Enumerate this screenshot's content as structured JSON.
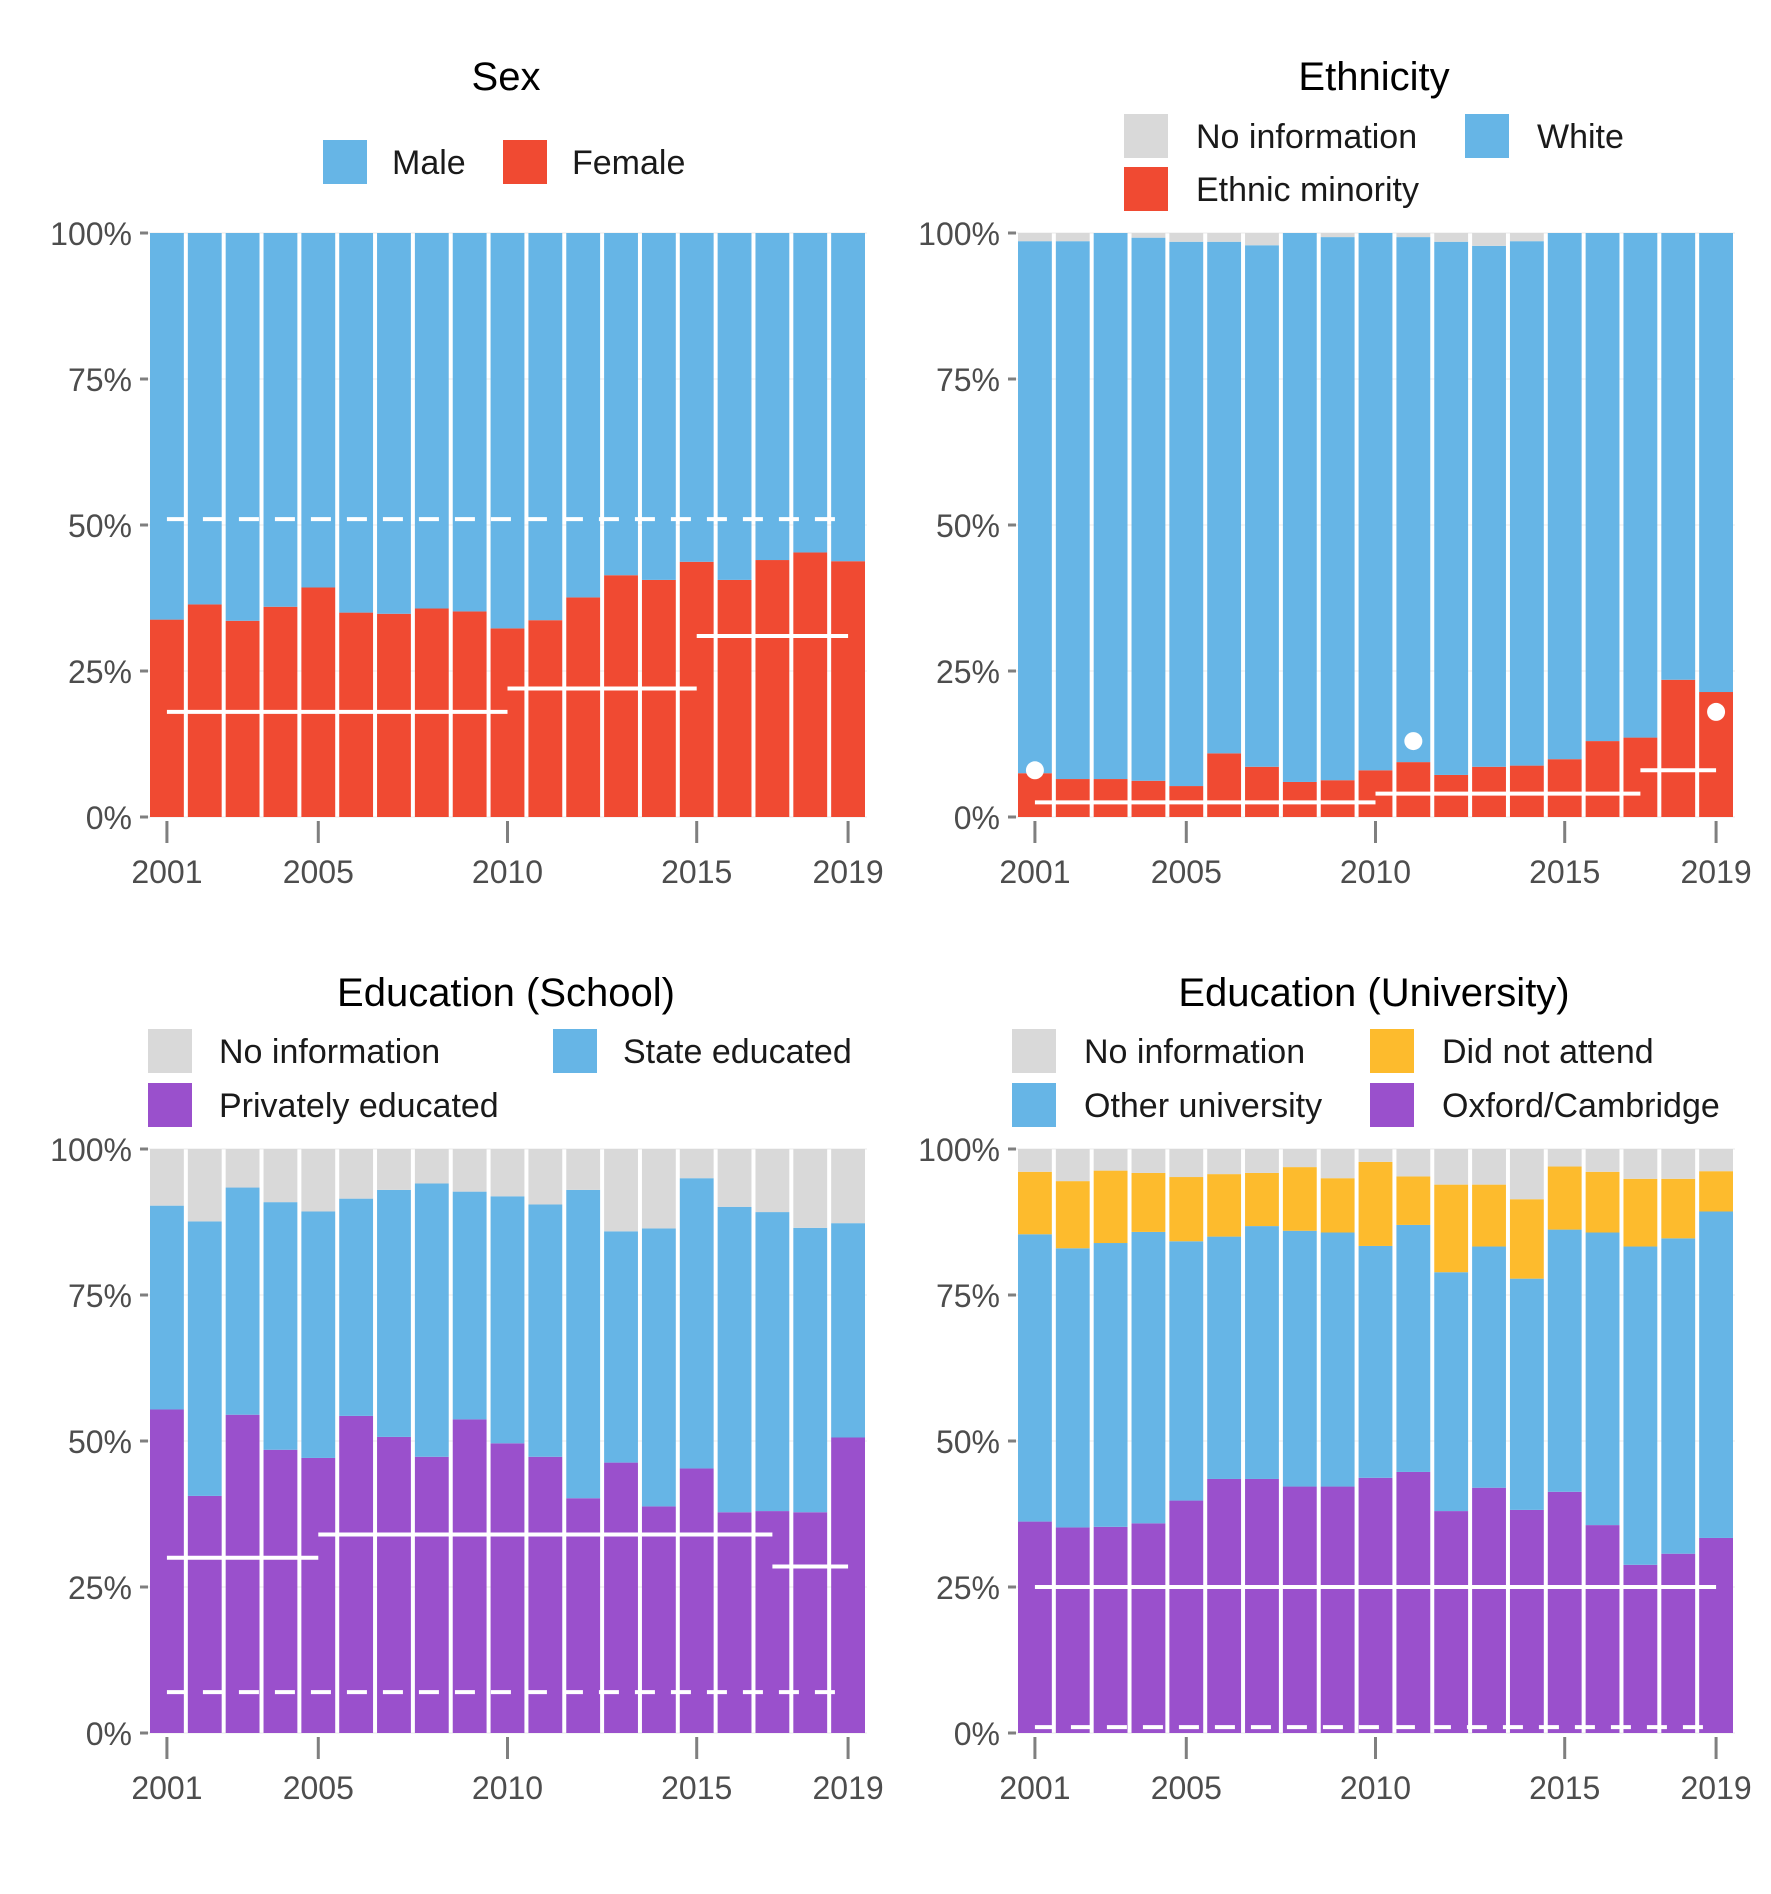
{
  "colors": {
    "male": "#66b5e6",
    "female": "#f04a32",
    "no_information": "#d9d9d9",
    "white_ethnicity": "#66b5e6",
    "ethnic_minority": "#f04a32",
    "state_educated": "#66b5e6",
    "privately_educated": "#9a50cc",
    "did_not_attend": "#fdbb2d",
    "other_university": "#66b5e6",
    "oxbridge": "#9a50cc",
    "reference": "#ffffff",
    "axis_text": "#4d4d4d"
  },
  "chart_data": [
    {
      "id": "sex",
      "type": "bar",
      "stacked": true,
      "title": "Sex",
      "xlabel": "",
      "ylabel": "",
      "ylim": [
        0,
        100
      ],
      "yticks": [
        "0%",
        "25%",
        "50%",
        "75%",
        "100%"
      ],
      "xticks": [
        "2001",
        "2005",
        "2010",
        "2015",
        "2019"
      ],
      "legend_position": "top",
      "legend": [
        {
          "label": "Male",
          "color": "#66b5e6"
        },
        {
          "label": "Female",
          "color": "#f04a32"
        }
      ],
      "categories": [
        2001,
        2002,
        2003,
        2004,
        2005,
        2006,
        2007,
        2008,
        2009,
        2010,
        2011,
        2012,
        2013,
        2014,
        2015,
        2016,
        2017,
        2018,
        2019
      ],
      "series": [
        {
          "name": "Female",
          "color": "#f04a32",
          "values": [
            33.8,
            36.4,
            33.6,
            36.0,
            39.3,
            35.0,
            34.8,
            35.7,
            35.2,
            32.3,
            33.7,
            37.6,
            41.4,
            40.6,
            43.7,
            40.6,
            44.0,
            45.3,
            43.8
          ]
        },
        {
          "name": "Male",
          "color": "#66b5e6",
          "values": [
            66.2,
            63.6,
            66.4,
            64.0,
            60.7,
            65.0,
            65.2,
            64.3,
            64.8,
            67.7,
            66.3,
            62.4,
            58.6,
            59.4,
            56.3,
            59.4,
            56.0,
            54.7,
            56.2
          ]
        }
      ],
      "reference_lines": [
        {
          "style": "dashed",
          "from": 2001,
          "to": 2019,
          "value": 51
        },
        {
          "style": "solid",
          "from": 2001,
          "to": 2010,
          "value": 18
        },
        {
          "style": "solid",
          "from": 2010,
          "to": 2015,
          "value": 22
        },
        {
          "style": "solid",
          "from": 2015,
          "to": 2019,
          "value": 31
        }
      ],
      "reference_points": []
    },
    {
      "id": "ethnicity",
      "type": "bar",
      "stacked": true,
      "title": "Ethnicity",
      "xlabel": "",
      "ylabel": "",
      "ylim": [
        0,
        100
      ],
      "yticks": [
        "0%",
        "25%",
        "50%",
        "75%",
        "100%"
      ],
      "xticks": [
        "2001",
        "2005",
        "2010",
        "2015",
        "2019"
      ],
      "legend_position": "top",
      "legend": [
        {
          "label": "No information",
          "color": "#d9d9d9"
        },
        {
          "label": "White",
          "color": "#66b5e6"
        },
        {
          "label": "Ethnic minority",
          "color": "#f04a32"
        }
      ],
      "categories": [
        2001,
        2002,
        2003,
        2004,
        2005,
        2006,
        2007,
        2008,
        2009,
        2010,
        2011,
        2012,
        2013,
        2014,
        2015,
        2016,
        2017,
        2018,
        2019
      ],
      "series": [
        {
          "name": "Ethnic minority",
          "color": "#f04a32",
          "values": [
            7.5,
            6.5,
            6.5,
            6.2,
            5.3,
            10.9,
            8.6,
            6.0,
            6.3,
            8.0,
            9.4,
            7.2,
            8.6,
            8.8,
            9.9,
            13.0,
            13.6,
            23.5,
            21.4
          ]
        },
        {
          "name": "White",
          "color": "#66b5e6",
          "values": [
            91.1,
            92.1,
            93.5,
            93.0,
            93.2,
            87.6,
            89.3,
            94.0,
            93.0,
            92.0,
            89.9,
            91.3,
            89.2,
            89.8,
            90.1,
            87.0,
            86.4,
            76.5,
            78.6
          ]
        },
        {
          "name": "No information",
          "color": "#d9d9d9",
          "values": [
            1.4,
            1.4,
            0.0,
            0.8,
            1.5,
            1.5,
            2.1,
            0.0,
            0.7,
            0.0,
            0.7,
            1.5,
            2.2,
            1.4,
            0.0,
            0.0,
            0.0,
            0.0,
            0.0
          ]
        }
      ],
      "reference_lines": [
        {
          "style": "solid",
          "from": 2001,
          "to": 2010,
          "value": 2.5
        },
        {
          "style": "solid",
          "from": 2010,
          "to": 2017,
          "value": 4
        },
        {
          "style": "solid",
          "from": 2017,
          "to": 2019,
          "value": 8
        }
      ],
      "reference_points": [
        {
          "x": 2001,
          "value": 8
        },
        {
          "x": 2011,
          "value": 13
        },
        {
          "x": 2019,
          "value": 18
        }
      ]
    },
    {
      "id": "education_school",
      "type": "bar",
      "stacked": true,
      "title": "Education (School)",
      "xlabel": "",
      "ylabel": "",
      "ylim": [
        0,
        100
      ],
      "yticks": [
        "0%",
        "25%",
        "50%",
        "75%",
        "100%"
      ],
      "xticks": [
        "2001",
        "2005",
        "2010",
        "2015",
        "2019"
      ],
      "legend_position": "top",
      "legend": [
        {
          "label": "No information",
          "color": "#d9d9d9"
        },
        {
          "label": "State educated",
          "color": "#66b5e6"
        },
        {
          "label": "Privately educated",
          "color": "#9a50cc"
        }
      ],
      "categories": [
        2001,
        2002,
        2003,
        2004,
        2005,
        2006,
        2007,
        2008,
        2009,
        2010,
        2011,
        2012,
        2013,
        2014,
        2015,
        2016,
        2017,
        2018,
        2019
      ],
      "series": [
        {
          "name": "Privately educated",
          "color": "#9a50cc",
          "values": [
            55.4,
            40.6,
            54.5,
            48.5,
            47.1,
            54.3,
            50.7,
            47.3,
            53.7,
            49.6,
            47.3,
            40.2,
            46.3,
            38.8,
            45.3,
            37.8,
            38.0,
            37.8,
            50.6
          ]
        },
        {
          "name": "State educated",
          "color": "#66b5e6",
          "values": [
            34.9,
            47.0,
            38.9,
            42.4,
            42.2,
            37.2,
            42.3,
            46.8,
            39.0,
            42.3,
            43.2,
            52.8,
            39.6,
            47.6,
            49.7,
            52.3,
            51.2,
            48.7,
            36.7
          ]
        },
        {
          "name": "No information",
          "color": "#d9d9d9",
          "values": [
            9.7,
            12.4,
            6.6,
            9.1,
            10.7,
            8.5,
            7.0,
            5.9,
            7.3,
            8.1,
            9.5,
            7.0,
            14.1,
            13.6,
            5.0,
            9.9,
            10.8,
            13.5,
            12.7
          ]
        }
      ],
      "reference_lines": [
        {
          "style": "dashed",
          "from": 2001,
          "to": 2019,
          "value": 7
        },
        {
          "style": "solid",
          "from": 2001,
          "to": 2005,
          "value": 30
        },
        {
          "style": "solid",
          "from": 2005,
          "to": 2017,
          "value": 34
        },
        {
          "style": "solid",
          "from": 2017,
          "to": 2019,
          "value": 28.5
        }
      ],
      "reference_points": []
    },
    {
      "id": "education_university",
      "type": "bar",
      "stacked": true,
      "title": "Education (University)",
      "xlabel": "",
      "ylabel": "",
      "ylim": [
        0,
        100
      ],
      "yticks": [
        "0%",
        "25%",
        "50%",
        "75%",
        "100%"
      ],
      "xticks": [
        "2001",
        "2005",
        "2010",
        "2015",
        "2019"
      ],
      "legend_position": "top",
      "legend": [
        {
          "label": "No information",
          "color": "#d9d9d9"
        },
        {
          "label": "Did not attend",
          "color": "#fdbb2d"
        },
        {
          "label": "Other university",
          "color": "#66b5e6"
        },
        {
          "label": "Oxford/Cambridge",
          "color": "#9a50cc"
        }
      ],
      "categories": [
        2001,
        2002,
        2003,
        2004,
        2005,
        2006,
        2007,
        2008,
        2009,
        2010,
        2011,
        2012,
        2013,
        2014,
        2015,
        2016,
        2017,
        2018,
        2019
      ],
      "series": [
        {
          "name": "Oxford/Cambridge",
          "color": "#9a50cc",
          "values": [
            36.2,
            35.2,
            35.3,
            35.9,
            39.8,
            43.5,
            43.5,
            42.2,
            42.2,
            43.7,
            44.7,
            38.0,
            42.0,
            38.2,
            41.3,
            35.6,
            28.8,
            30.7,
            33.4
          ]
        },
        {
          "name": "Other university",
          "color": "#66b5e6",
          "values": [
            49.2,
            47.8,
            48.6,
            49.9,
            44.4,
            41.5,
            43.3,
            43.8,
            43.5,
            39.7,
            42.3,
            40.9,
            41.3,
            39.6,
            44.9,
            50.1,
            54.5,
            54.0,
            55.9
          ]
        },
        {
          "name": "Did not attend",
          "color": "#fdbb2d",
          "values": [
            10.7,
            11.5,
            12.4,
            10.1,
            11.0,
            10.7,
            9.1,
            10.9,
            9.3,
            14.4,
            8.3,
            15.0,
            10.6,
            13.6,
            10.8,
            10.4,
            11.6,
            10.2,
            6.9
          ]
        },
        {
          "name": "No information",
          "color": "#d9d9d9",
          "values": [
            3.9,
            5.5,
            3.7,
            4.1,
            4.8,
            4.3,
            4.1,
            3.1,
            5.0,
            2.2,
            4.7,
            6.1,
            6.1,
            8.6,
            3.0,
            3.9,
            5.1,
            5.1,
            3.8
          ]
        }
      ],
      "reference_lines": [
        {
          "style": "dashed",
          "from": 2001,
          "to": 2019,
          "value": 1
        },
        {
          "style": "solid",
          "from": 2001,
          "to": 2019,
          "value": 25
        }
      ],
      "reference_points": []
    }
  ]
}
